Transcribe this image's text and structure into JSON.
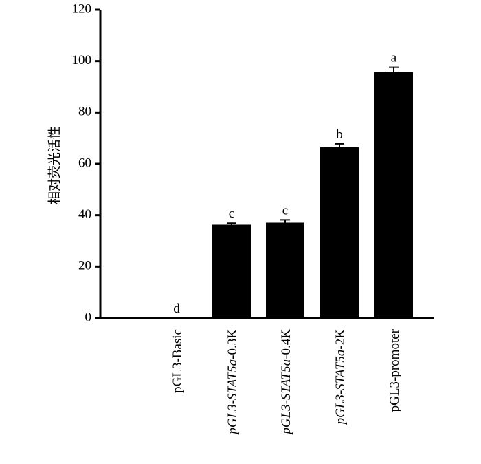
{
  "chart_data": {
    "type": "bar",
    "title": "",
    "xlabel": "",
    "ylabel": "相对荧光活性",
    "ylim": [
      0,
      120
    ],
    "yticks": [
      0,
      20,
      40,
      60,
      80,
      100,
      120
    ],
    "grid": false,
    "bar_color": "#000000",
    "categories": [
      {
        "label": "pGL3-Basic",
        "parts": [
          {
            "text": "pGL3-Basic",
            "italic": false
          }
        ]
      },
      {
        "label": "pGL3-STAT5a-0.3K",
        "parts": [
          {
            "text": "pGL3-",
            "italic": true
          },
          {
            "text": "STAT5a",
            "italic": true
          },
          {
            "text": "-0.3K",
            "italic": false
          }
        ]
      },
      {
        "label": "pGL3-STAT5a-0.4K",
        "parts": [
          {
            "text": "pGL3-",
            "italic": true
          },
          {
            "text": "STAT5a",
            "italic": true
          },
          {
            "text": "-0.4K",
            "italic": false
          }
        ]
      },
      {
        "label": "pGL3-STAT5a-2K",
        "parts": [
          {
            "text": "pGL3-",
            "italic": true
          },
          {
            "text": "STAT5a",
            "italic": true
          },
          {
            "text": "-2K",
            "italic": false
          }
        ]
      },
      {
        "label": "pGL3-promoter",
        "parts": [
          {
            "text": "pGL3-promoter",
            "italic": false
          }
        ]
      }
    ],
    "values": [
      0.0,
      36.3,
      37.1,
      66.5,
      95.8
    ],
    "errors": [
      0.0,
      0.6,
      1.1,
      1.3,
      1.8
    ],
    "significance": [
      "d",
      "c",
      "c",
      "b",
      "a"
    ]
  }
}
